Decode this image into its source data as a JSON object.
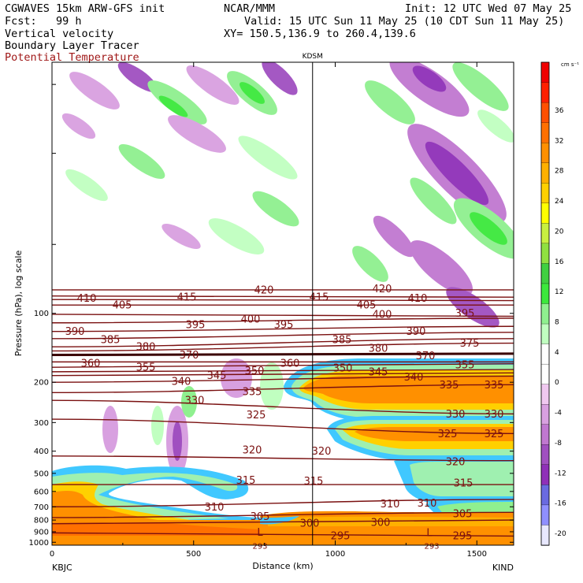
{
  "header": {
    "model": "CGWAVES 15km ARW-GFS init",
    "org": "NCAR/MMM",
    "init": "Init: 12 UTC Wed 07 May 25",
    "fcst": "Fcst:   99 h",
    "valid": "Valid: 15 UTC Sun 11 May 25 (10 CDT Sun 11 May 25)",
    "xy": "XY= 150.5,136.9 to 260.4,139.6",
    "line1": "Vertical velocity",
    "line2": "Boundary Layer Tracer",
    "line3": "Potential Temperature"
  },
  "chart_data": {
    "type": "heatmap",
    "xlabel": "Distance (km)",
    "ylabel": "Pressure (hPa), log scale",
    "x_ticks": [
      0,
      500,
      1000,
      1500
    ],
    "xlim": [
      0,
      1630
    ],
    "y_ticks": [
      100,
      200,
      300,
      400,
      500,
      600,
      700,
      800,
      900,
      1000
    ],
    "ylim": [
      1030,
      8
    ],
    "y_scale": "log",
    "x_endpoints": {
      "left": "KBJC",
      "right": "KIND"
    },
    "station_marker": {
      "label": "KDSM",
      "x": 920
    },
    "colorbar": {
      "unit": "cm s⁻¹",
      "tick_labels": [
        36,
        32,
        28,
        24,
        20,
        16,
        12,
        8,
        4,
        0,
        -4,
        -8,
        -12,
        -16,
        -20
      ],
      "colors": [
        "#e8e8ff",
        "#8f8fff",
        "#6a6ae0",
        "#8f30b8",
        "#a050c0",
        "#c078d0",
        "#d8a0e0",
        "#f0c8f0",
        "#ffffff",
        "#ffffff",
        "#c0ffc0",
        "#8ff08f",
        "#3ce83c",
        "#40d040",
        "#90e040",
        "#c8f040",
        "#ffff00",
        "#ffd000",
        "#ffb000",
        "#ff9000",
        "#ff7000",
        "#ff5000",
        "#ff2000",
        "#f00000"
      ]
    },
    "theta_labels": [
      {
        "v": "410",
        "x": 110,
        "p": 86
      },
      {
        "v": "405",
        "x": 155,
        "p": 92
      },
      {
        "v": "415",
        "x": 237,
        "p": 85
      },
      {
        "v": "420",
        "x": 335,
        "p": 79
      },
      {
        "v": "415",
        "x": 405,
        "p": 85
      },
      {
        "v": "405",
        "x": 465,
        "p": 92
      },
      {
        "v": "420",
        "x": 485,
        "p": 78
      },
      {
        "v": "410",
        "x": 530,
        "p": 86
      },
      {
        "v": "400",
        "x": 485,
        "p": 101
      },
      {
        "v": "395",
        "x": 590,
        "p": 100
      },
      {
        "v": "390",
        "x": 95,
        "p": 120
      },
      {
        "v": "385",
        "x": 140,
        "p": 130
      },
      {
        "v": "380",
        "x": 185,
        "p": 140
      },
      {
        "v": "395",
        "x": 248,
        "p": 112
      },
      {
        "v": "400",
        "x": 318,
        "p": 106
      },
      {
        "v": "395",
        "x": 360,
        "p": 112
      },
      {
        "v": "385",
        "x": 434,
        "p": 130
      },
      {
        "v": "380",
        "x": 480,
        "p": 142
      },
      {
        "v": "390",
        "x": 528,
        "p": 120
      },
      {
        "v": "375",
        "x": 596,
        "p": 135
      },
      {
        "v": "370",
        "x": 540,
        "p": 153
      },
      {
        "v": "370",
        "x": 240,
        "p": 152
      },
      {
        "v": "360",
        "x": 115,
        "p": 165
      },
      {
        "v": "355",
        "x": 185,
        "p": 172
      },
      {
        "v": "360",
        "x": 368,
        "p": 165
      },
      {
        "v": "350",
        "x": 323,
        "p": 178
      },
      {
        "v": "345",
        "x": 275,
        "p": 187
      },
      {
        "v": "340",
        "x": 230,
        "p": 198
      },
      {
        "v": "345",
        "x": 480,
        "p": 180
      },
      {
        "v": "350",
        "x": 435,
        "p": 173
      },
      {
        "v": "355",
        "x": 590,
        "p": 168
      },
      {
        "v": "340",
        "x": 525,
        "p": 190
      },
      {
        "v": "335",
        "x": 320,
        "p": 220
      },
      {
        "v": "330",
        "x": 247,
        "p": 240
      },
      {
        "v": "335",
        "x": 570,
        "p": 205
      },
      {
        "v": "335",
        "x": 627,
        "p": 205
      },
      {
        "v": "325",
        "x": 325,
        "p": 278
      },
      {
        "v": "330",
        "x": 578,
        "p": 275
      },
      {
        "v": "330",
        "x": 627,
        "p": 275
      },
      {
        "v": "320",
        "x": 320,
        "p": 395
      },
      {
        "v": "320",
        "x": 408,
        "p": 400
      },
      {
        "v": "325",
        "x": 568,
        "p": 335
      },
      {
        "v": "325",
        "x": 627,
        "p": 335
      },
      {
        "v": "320",
        "x": 578,
        "p": 445
      },
      {
        "v": "315",
        "x": 312,
        "p": 535
      },
      {
        "v": "315",
        "x": 398,
        "p": 540
      },
      {
        "v": "315",
        "x": 588,
        "p": 550
      },
      {
        "v": "310",
        "x": 272,
        "p": 700
      },
      {
        "v": "310",
        "x": 495,
        "p": 680
      },
      {
        "v": "310",
        "x": 542,
        "p": 675
      },
      {
        "v": "305",
        "x": 330,
        "p": 770
      },
      {
        "v": "305",
        "x": 587,
        "p": 750
      },
      {
        "v": "300",
        "x": 393,
        "p": 825
      },
      {
        "v": "300",
        "x": 483,
        "p": 820
      },
      {
        "v": "295",
        "x": 432,
        "p": 935
      },
      {
        "v": "295",
        "x": 587,
        "p": 935
      }
    ],
    "theta_lines": [
      {
        "v": "420",
        "p": [
          79,
          79
        ]
      },
      {
        "v": "415",
        "p": [
          84,
          85
        ]
      },
      {
        "v": "410",
        "p": [
          87,
          88
        ]
      },
      {
        "v": "405",
        "p": [
          92,
          92
        ]
      },
      {
        "v": "400",
        "p": [
          101,
          103
        ]
      },
      {
        "v": "395",
        "p": [
          110,
          105
        ]
      },
      {
        "v": "390",
        "p": [
          120,
          114
        ]
      },
      {
        "v": "385",
        "p": [
          129,
          121
        ]
      },
      {
        "v": "380",
        "p": [
          140,
          129
        ]
      },
      {
        "v": "375",
        "p": [
          146,
          135
        ]
      },
      {
        "v": "370",
        "p": [
          152,
          150
        ]
      },
      {
        "v": "360",
        "p": [
          163,
          163
        ]
      },
      {
        "v": "355",
        "p": [
          172,
          166
        ]
      },
      {
        "v": "350",
        "p": [
          180,
          176
        ]
      },
      {
        "v": "345",
        "p": [
          187,
          182
        ]
      },
      {
        "v": "340",
        "p": [
          200,
          188
        ]
      },
      {
        "v": "335",
        "p": [
          222,
          205
        ]
      },
      {
        "v": "330",
        "p": [
          240,
          275
        ]
      },
      {
        "v": "325",
        "p": [
          290,
          335
        ]
      },
      {
        "v": "320",
        "p": [
          420,
          440
        ]
      },
      {
        "v": "315",
        "p": [
          560,
          560
        ]
      },
      {
        "v": "310",
        "p": [
          700,
          650
        ]
      },
      {
        "v": "305",
        "p": [
          780,
          740
        ]
      },
      {
        "v": "300",
        "p": [
          830,
          800
        ]
      },
      {
        "v": "295",
        "p": [
          910,
          940
        ]
      }
    ],
    "markers": [
      {
        "label": "L",
        "x": 330,
        "p": 900
      },
      {
        "label": "L",
        "x": 545,
        "p": 905
      },
      {
        "label": "293",
        "x": 330,
        "p": 1025
      },
      {
        "label": "293",
        "x": 548,
        "p": 1025
      }
    ]
  }
}
